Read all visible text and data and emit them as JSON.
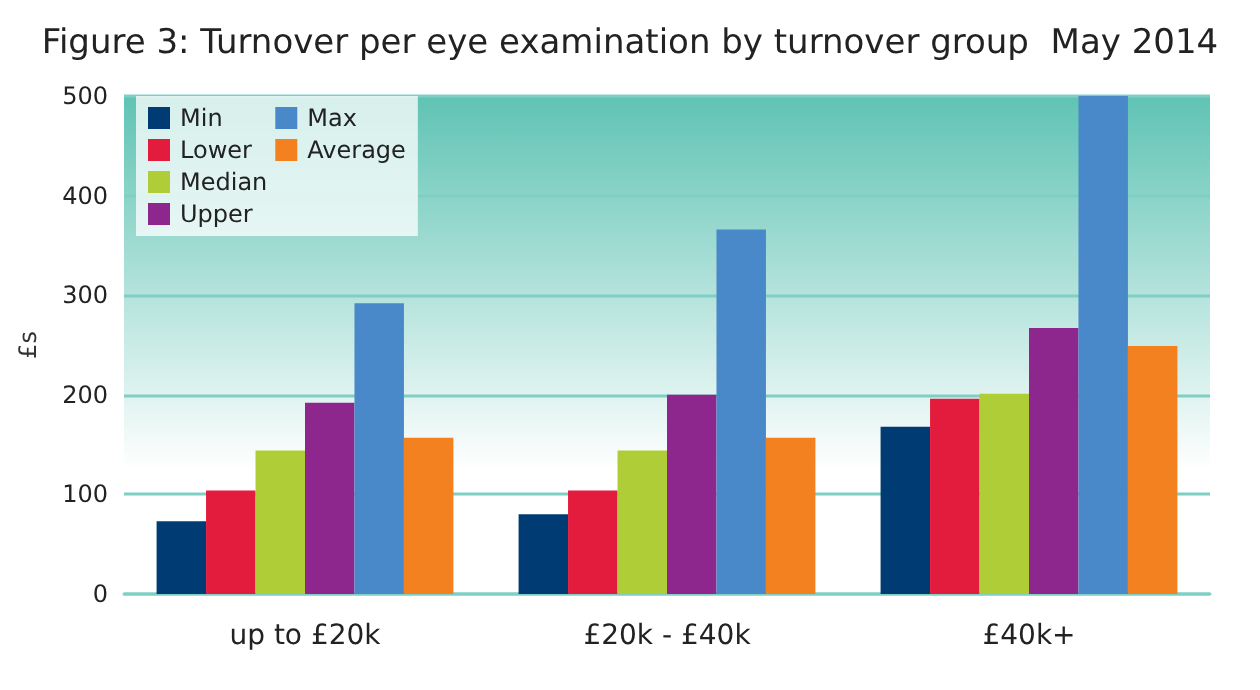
{
  "chart_data": {
    "type": "bar",
    "title": "Figure 3: Turnover per eye examination by turnover group  May 2014",
    "ylabel": "£s",
    "categories": [
      "up to £20k",
      "£20k - £40k",
      "£40k+"
    ],
    "series": [
      {
        "name": "Min",
        "color": "#003b73",
        "values": [
          73,
          80,
          168
        ]
      },
      {
        "name": "Lower",
        "color": "#e31b3d",
        "values": [
          104,
          104,
          196
        ]
      },
      {
        "name": "Median",
        "color": "#afcd37",
        "values": [
          144,
          144,
          201
        ]
      },
      {
        "name": "Upper",
        "color": "#8e278d",
        "values": [
          192,
          200,
          267
        ]
      },
      {
        "name": "Max",
        "color": "#4a89c9",
        "values": [
          292,
          366,
          500
        ]
      },
      {
        "name": "Average",
        "color": "#f38120",
        "values": [
          157,
          157,
          249
        ]
      }
    ],
    "ylim": [
      0,
      500
    ],
    "yticks": [
      0,
      100,
      200,
      300,
      400,
      500
    ],
    "grid": "y",
    "legend": "top left"
  }
}
